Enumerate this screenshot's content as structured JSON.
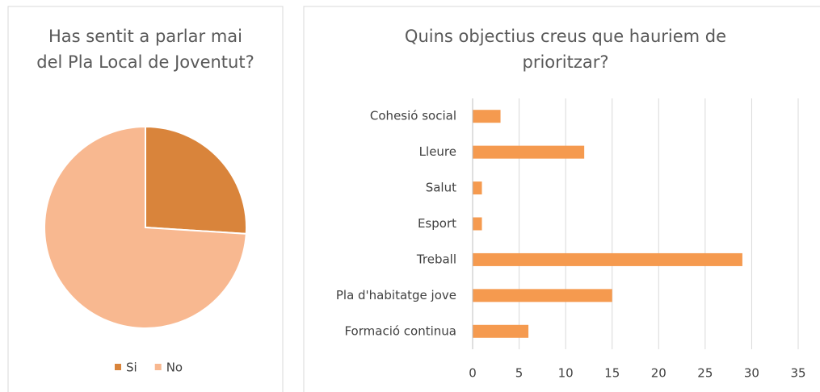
{
  "chart_data": [
    {
      "type": "pie",
      "title": "Has sentit a parlar mai del Pla Local de Joventut?",
      "categories": [
        "Si",
        "No"
      ],
      "values": [
        26,
        74
      ],
      "colors": [
        "#d9843b",
        "#f8b890"
      ],
      "legend": "bottom"
    },
    {
      "type": "hbar",
      "title": "Quins objectius creus que hauriem de prioritzar?",
      "categories": [
        "Cohesió social",
        "Lleure",
        "Salut",
        "Esport",
        "Treball",
        "Pla d'habitatge jove",
        "Formació continua"
      ],
      "values": [
        3,
        12,
        1,
        1,
        29,
        15,
        6
      ],
      "color": "#f59a4f",
      "xlim": [
        0,
        35
      ],
      "xticks": [
        0,
        5,
        10,
        15,
        20,
        25,
        30,
        35
      ],
      "grid": true
    }
  ]
}
